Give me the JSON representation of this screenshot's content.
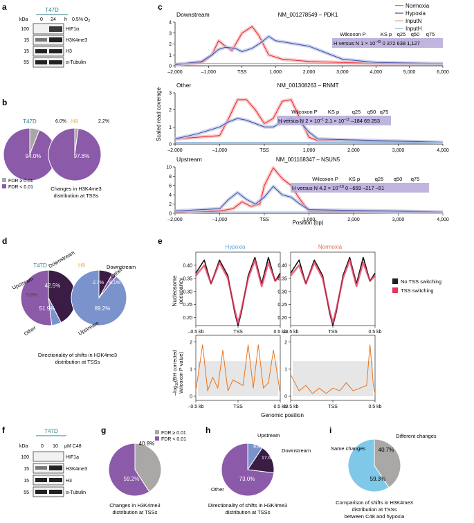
{
  "panels": {
    "a": {
      "letter": "a",
      "cell": "T47D",
      "kda_label": "kDa",
      "time_label": "h",
      "times": [
        "0",
        "24"
      ],
      "condition": "0.5% O",
      "condition_sub": "2",
      "markers": [
        "100",
        "15",
        "15",
        "55"
      ],
      "bands": [
        "HIF1α",
        "H3K4me3",
        "H3",
        "α-Tubulin"
      ]
    },
    "b": {
      "letter": "b",
      "pies": [
        {
          "title": "T47D",
          "small_pct": "6.0%",
          "large_pct": "94.0%",
          "fraction_small": 0.06
        },
        {
          "title": "H9",
          "small_pct": "2.2%",
          "large_pct": "97.8%",
          "fraction_small": 0.022
        }
      ],
      "legend": [
        "FDR ≥ 0.01",
        "FDR < 0.01"
      ],
      "caption": [
        "Changes in H3K4me3",
        "distribution at TSSs"
      ]
    },
    "c": {
      "letter": "c",
      "ylabel": "Scaled read coverage",
      "xlabel": "Position (bp)",
      "tss_label": "TSS",
      "legend": [
        "Normoxia",
        "Hypoxia",
        "InputN",
        "InputH"
      ],
      "subplots": [
        {
          "region": "Downstream",
          "gene": "NM_001278549 – PDK1",
          "yticks": [
            "0",
            "1",
            "2",
            "3",
            "4"
          ],
          "xticks": [
            "–2,000",
            "–1,000",
            "TSS",
            "1,000",
            "2,000",
            "3,000",
            "4,000",
            "5,000",
            "6,000"
          ],
          "stats_header": [
            "Wilcoxon P",
            "KS p",
            "q25",
            "q50",
            "q75"
          ],
          "stats_values": [
            "H versus N",
            "1 × 10",
            "–43",
            "0",
            "372",
            "638",
            "1,127"
          ]
        },
        {
          "region": "Other",
          "gene": "NM_001308263 – RNMT",
          "yticks": [
            "0",
            "1",
            "2",
            "3"
          ],
          "xticks": [
            "–2,000",
            "–1,000",
            "TSS",
            "1,000",
            "2,000",
            "3,000",
            "4,000"
          ],
          "stats_header": [
            "Wilcoxon P",
            "KS p",
            "q25",
            "q50",
            "q75"
          ],
          "stats_values": [
            "H versus N",
            "2 × 10",
            "–1",
            "2.1 × 10",
            "–11",
            "–184",
            "69",
            "253"
          ]
        },
        {
          "region": "Upstream",
          "gene": "NM_001168347 – NSUN5",
          "yticks": [
            "0",
            "2",
            "4",
            "6",
            "8",
            "10"
          ],
          "xticks": [
            "–2,000",
            "–1,000",
            "TSS",
            "1,000",
            "2,000",
            "3,000",
            "4,000"
          ],
          "stats_header": [
            "Wilcoxon P",
            "KS p",
            "q25",
            "q50",
            "q75"
          ],
          "stats_values": [
            "H versus N",
            "4.2 × 10",
            "–18",
            "0",
            "–659",
            "–217",
            "–51"
          ]
        }
      ]
    },
    "d": {
      "letter": "d",
      "pies": [
        {
          "title": "T47D",
          "slices": [
            {
              "label": "Downstream",
              "pct": "42.5%"
            },
            {
              "label": "Upstream",
              "pct": "5.6%"
            },
            {
              "label": "Other",
              "pct": "51.9%"
            }
          ]
        },
        {
          "title": "H9",
          "slices": [
            {
              "label": "Downstream",
              "pct": "8.1%"
            },
            {
              "label": "Other",
              "pct": "2.7%"
            },
            {
              "label": "Upstream",
              "pct": "89.2%"
            }
          ]
        }
      ],
      "caption": [
        "Directionality of shifts in H3K4me3",
        "distribution at TSSs"
      ]
    },
    "e": {
      "letter": "e",
      "titles": [
        "Hypoxia",
        "Normoxia"
      ],
      "ylabel_top": [
        "Nucleosome",
        "occupancy"
      ],
      "ylabel_bottom": [
        "–log",
        "10",
        "(BH corrected",
        "Wilcoxon P value)"
      ],
      "yticks_top": [
        "0.20",
        "0.25",
        "0.30",
        "0.35",
        "0.40"
      ],
      "yticks_bottom": [
        "0",
        "1",
        "2"
      ],
      "xticks": [
        "–0.5 kb",
        "TSS",
        "0.5 kb"
      ],
      "legend": [
        "No TSS switching",
        "TSS switching"
      ],
      "xlabel": "Genomic position"
    },
    "f": {
      "letter": "f",
      "cell": "T47D",
      "kda_label": "kDa",
      "doses": [
        "0",
        "10"
      ],
      "condition": "μM C48",
      "markers": [
        "100",
        "15",
        "15",
        "55"
      ],
      "bands": [
        "HIF1a",
        "H3K4me3",
        "H3",
        "α-Tubulin"
      ]
    },
    "g": {
      "letter": "g",
      "legend": [
        "FDR ≥ 0.01",
        "FDR < 0.01"
      ],
      "small_pct": "40.8%",
      "large_pct": "59.2%",
      "caption": [
        "Changes in H3K4me3",
        "distribution at TSSs"
      ]
    },
    "h": {
      "letter": "h",
      "slices": [
        {
          "label": "Upstream",
          "pct": "9.4%"
        },
        {
          "label": "Downstream",
          "pct": "17.6%"
        },
        {
          "label": "Other",
          "pct": "73.0%"
        }
      ],
      "caption": [
        "Directionality of shifts in H3K4me3",
        "distribution at TSSs"
      ]
    },
    "i": {
      "letter": "i",
      "slices": [
        {
          "label": "Different changes",
          "pct": "40.7%"
        },
        {
          "label": "Same changes",
          "pct": "59.3%"
        }
      ],
      "caption": [
        "Comparison of shifts in H3K4me3",
        "distribution at TSSs",
        "between C48 and hypoxia"
      ]
    }
  },
  "chart_data": [
    {
      "type": "pie",
      "title": "T47D",
      "labels": [
        "FDR ≥ 0.01",
        "FDR < 0.01"
      ],
      "values": [
        6.0,
        94.0
      ]
    },
    {
      "type": "pie",
      "title": "H9",
      "labels": [
        "FDR ≥ 0.01",
        "FDR < 0.01"
      ],
      "values": [
        2.2,
        97.8
      ]
    },
    {
      "type": "pie",
      "title": "T47D",
      "labels": [
        "Downstream",
        "Upstream",
        "Other"
      ],
      "values": [
        42.5,
        5.6,
        51.9
      ]
    },
    {
      "type": "pie",
      "title": "H9",
      "labels": [
        "Downstream",
        "Other",
        "Upstream"
      ],
      "values": [
        8.1,
        2.7,
        89.2
      ]
    },
    {
      "type": "pie",
      "title": "C48",
      "labels": [
        "FDR ≥ 0.01",
        "FDR < 0.01"
      ],
      "values": [
        40.8,
        59.2
      ]
    },
    {
      "type": "pie",
      "title": "C48 directionality",
      "labels": [
        "Upstream",
        "Downstream",
        "Other"
      ],
      "values": [
        9.4,
        17.6,
        73.0
      ]
    },
    {
      "type": "pie",
      "title": "C48 vs hypoxia",
      "labels": [
        "Different changes",
        "Same changes"
      ],
      "values": [
        40.7,
        59.3
      ]
    },
    {
      "type": "line",
      "title": "NM_001278549 – PDK1",
      "xlim": [
        -2000,
        6000
      ],
      "ylim": [
        0,
        4
      ],
      "series": [
        {
          "name": "Normoxia",
          "x": [
            -2000,
            -1200,
            -900,
            -700,
            -500,
            -300,
            0,
            300,
            500,
            800,
            1200,
            2000,
            4000,
            6000
          ],
          "y": [
            0.1,
            0.3,
            1.0,
            2.3,
            1.8,
            1.4,
            3.0,
            3.6,
            2.8,
            1.0,
            0.6,
            0.4,
            0.2,
            0.2
          ]
        },
        {
          "name": "Hypoxia",
          "x": [
            -2000,
            -1200,
            -900,
            -700,
            -500,
            -200,
            0,
            300,
            600,
            800,
            1000,
            1400,
            2000,
            2500,
            3000,
            4000,
            6000
          ],
          "y": [
            0.1,
            0.4,
            1.0,
            1.5,
            1.7,
            1.6,
            1.3,
            1.6,
            2.2,
            2.7,
            2.3,
            2.1,
            1.8,
            1.2,
            0.6,
            0.3,
            0.2
          ]
        },
        {
          "name": "InputN",
          "x": [
            -2000,
            6000
          ],
          "y": [
            0.2,
            0.2
          ]
        },
        {
          "name": "InputH",
          "x": [
            -2000,
            6000
          ],
          "y": [
            0.2,
            0.2
          ]
        }
      ]
    },
    {
      "type": "line",
      "title": "NM_001308263 – RNMT",
      "xlim": [
        -2000,
        4000
      ],
      "ylim": [
        0,
        3
      ],
      "series": [
        {
          "name": "Normoxia",
          "x": [
            -2000,
            -1000,
            -800,
            -600,
            -400,
            -200,
            0,
            200,
            400,
            600,
            800,
            1000,
            1200,
            4000
          ],
          "y": [
            0.3,
            0.5,
            1.5,
            2.6,
            2.6,
            2.0,
            1.2,
            1.5,
            2.5,
            2.6,
            1.5,
            0.4,
            0.2,
            0.1
          ]
        },
        {
          "name": "Hypoxia",
          "x": [
            -2000,
            -1500,
            -1000,
            -800,
            -600,
            -400,
            -200,
            0,
            200,
            400,
            600,
            800,
            1000,
            1200,
            4000
          ],
          "y": [
            0.3,
            0.6,
            1.0,
            1.3,
            1.5,
            1.4,
            1.2,
            1.0,
            1.0,
            1.3,
            1.5,
            1.3,
            0.7,
            0.3,
            0.1
          ]
        },
        {
          "name": "InputN",
          "x": [
            -2000,
            4000
          ],
          "y": [
            0.1,
            0.1
          ]
        },
        {
          "name": "InputH",
          "x": [
            -2000,
            4000
          ],
          "y": [
            0.1,
            0.1
          ]
        }
      ]
    },
    {
      "type": "line",
      "title": "NM_001168347 – NSUN5",
      "xlim": [
        -2000,
        4000
      ],
      "ylim": [
        0,
        10
      ],
      "series": [
        {
          "name": "Normoxia",
          "x": [
            -2000,
            -1000,
            -700,
            -500,
            -300,
            -100,
            0,
            200,
            400,
            600,
            800,
            1000,
            4000
          ],
          "y": [
            0.2,
            0.5,
            1.0,
            2.5,
            1.5,
            2.0,
            6.0,
            9.8,
            7.5,
            6.0,
            3.0,
            0.5,
            0.2
          ]
        },
        {
          "name": "Hypoxia",
          "x": [
            -2000,
            -1000,
            -800,
            -600,
            -400,
            -200,
            0,
            200,
            400,
            600,
            800,
            1000,
            4000
          ],
          "y": [
            0.5,
            1.0,
            3.0,
            4.5,
            3.0,
            2.0,
            3.5,
            5.8,
            4.0,
            3.5,
            2.0,
            0.8,
            0.3
          ]
        },
        {
          "name": "InputN",
          "x": [
            -2000,
            4000
          ],
          "y": [
            0.3,
            0.3
          ]
        },
        {
          "name": "InputH",
          "x": [
            -2000,
            4000
          ],
          "y": [
            0.3,
            0.3
          ]
        }
      ]
    },
    {
      "type": "line",
      "title": "Hypoxia",
      "xlim": [
        -500,
        500
      ],
      "ylim": [
        0.17,
        0.45
      ],
      "series": [
        {
          "name": "No TSS switching",
          "x": [
            -500,
            -400,
            -320,
            -220,
            -120,
            -40,
            0,
            40,
            120,
            200,
            280,
            360,
            440,
            500
          ],
          "y": [
            0.37,
            0.42,
            0.33,
            0.42,
            0.36,
            0.22,
            0.17,
            0.22,
            0.36,
            0.43,
            0.33,
            0.43,
            0.34,
            0.37
          ]
        },
        {
          "name": "TSS switching",
          "x": [
            -500,
            -400,
            -320,
            -220,
            -120,
            -40,
            0,
            40,
            120,
            200,
            280,
            360,
            440,
            500
          ],
          "y": [
            0.36,
            0.4,
            0.33,
            0.41,
            0.35,
            0.23,
            0.18,
            0.23,
            0.35,
            0.42,
            0.32,
            0.41,
            0.34,
            0.36
          ]
        }
      ]
    },
    {
      "type": "line",
      "title": "Normoxia",
      "xlim": [
        -500,
        500
      ],
      "ylim": [
        0.17,
        0.45
      ],
      "series": [
        {
          "name": "No TSS switching",
          "x": [
            -500,
            -400,
            -320,
            -220,
            -120,
            -40,
            0,
            40,
            120,
            200,
            280,
            360,
            440,
            500
          ],
          "y": [
            0.37,
            0.42,
            0.33,
            0.42,
            0.36,
            0.22,
            0.17,
            0.22,
            0.36,
            0.43,
            0.33,
            0.43,
            0.34,
            0.37
          ]
        },
        {
          "name": "TSS switching",
          "x": [
            -500,
            -400,
            -320,
            -220,
            -120,
            -40,
            0,
            40,
            120,
            200,
            280,
            360,
            440,
            500
          ],
          "y": [
            0.36,
            0.4,
            0.33,
            0.41,
            0.35,
            0.23,
            0.18,
            0.23,
            0.35,
            0.42,
            0.32,
            0.41,
            0.34,
            0.36
          ]
        }
      ]
    },
    {
      "type": "line",
      "title": "Hypoxia –log10 P",
      "xlim": [
        -500,
        500
      ],
      "ylim": [
        0,
        2.2
      ],
      "series": [
        {
          "name": "–log10 P",
          "x": [
            -500,
            -420,
            -360,
            -300,
            -240,
            -180,
            -120,
            -60,
            0,
            60,
            120,
            180,
            240,
            300,
            360,
            420,
            500
          ],
          "y": [
            0.2,
            1.9,
            0.2,
            0.7,
            0.3,
            1.7,
            0.2,
            0.6,
            0.5,
            0.4,
            1.9,
            0.3,
            1.9,
            0.3,
            0.5,
            1.7,
            0.1
          ]
        }
      ]
    },
    {
      "type": "line",
      "title": "Normoxia –log10 P",
      "xlim": [
        -500,
        500
      ],
      "ylim": [
        0,
        2.2
      ],
      "series": [
        {
          "name": "–log10 P",
          "x": [
            -500,
            -400,
            -320,
            -240,
            -160,
            -80,
            0,
            80,
            160,
            240,
            320,
            400,
            440,
            480,
            500
          ],
          "y": [
            0.8,
            0.2,
            0.4,
            0.1,
            0.3,
            0.1,
            0.3,
            0.2,
            0.5,
            0.2,
            0.3,
            0.4,
            1.9,
            0.4,
            0.1
          ]
        }
      ]
    }
  ]
}
